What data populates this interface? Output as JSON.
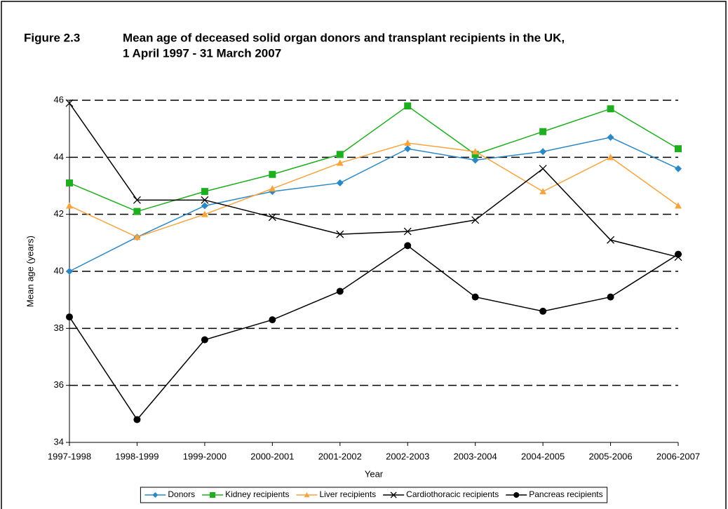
{
  "chart_data": {
    "type": "line",
    "figure_label": "Figure 2.3",
    "title": [
      "Mean age of deceased solid organ donors and transplant recipients in the UK,",
      "1 April 1997 - 31 March 2007"
    ],
    "x_label": "Year",
    "y_label": "Mean age (years)",
    "categories": [
      "1997-1998",
      "1998-1999",
      "1999-2000",
      "2000-2001",
      "2001-2002",
      "2002-2003",
      "2003-2004",
      "2004-2005",
      "2005-2006",
      "2006-2007"
    ],
    "ylim": [
      34,
      46
    ],
    "yticks": [
      34,
      36,
      38,
      40,
      42,
      44,
      46
    ],
    "grid": true,
    "legend": "bottom",
    "series": [
      {
        "name": "Donors",
        "color": "#2a88c4",
        "marker": "diamond",
        "values": [
          40.0,
          41.2,
          42.3,
          42.8,
          43.1,
          44.3,
          43.9,
          44.2,
          44.7,
          43.6
        ]
      },
      {
        "name": "Kidney recipients",
        "color": "#1fae1f",
        "marker": "square",
        "values": [
          43.1,
          42.1,
          42.8,
          43.4,
          44.1,
          45.8,
          44.1,
          44.9,
          45.7,
          44.3
        ]
      },
      {
        "name": "Liver recipients",
        "color": "#f7a43f",
        "marker": "triangle",
        "values": [
          42.3,
          41.2,
          42.0,
          42.9,
          43.8,
          44.5,
          44.2,
          42.8,
          44.0,
          42.3
        ]
      },
      {
        "name": "Cardiothoracic recipients",
        "color": "#000000",
        "marker": "x",
        "values": [
          45.9,
          42.5,
          42.5,
          41.9,
          41.3,
          41.4,
          41.8,
          43.6,
          41.1,
          40.5
        ]
      },
      {
        "name": "Pancreas recipients",
        "color": "#000000",
        "marker": "circle",
        "values": [
          38.4,
          34.8,
          37.6,
          38.3,
          39.3,
          40.9,
          39.1,
          38.6,
          39.1,
          40.6
        ]
      }
    ]
  }
}
